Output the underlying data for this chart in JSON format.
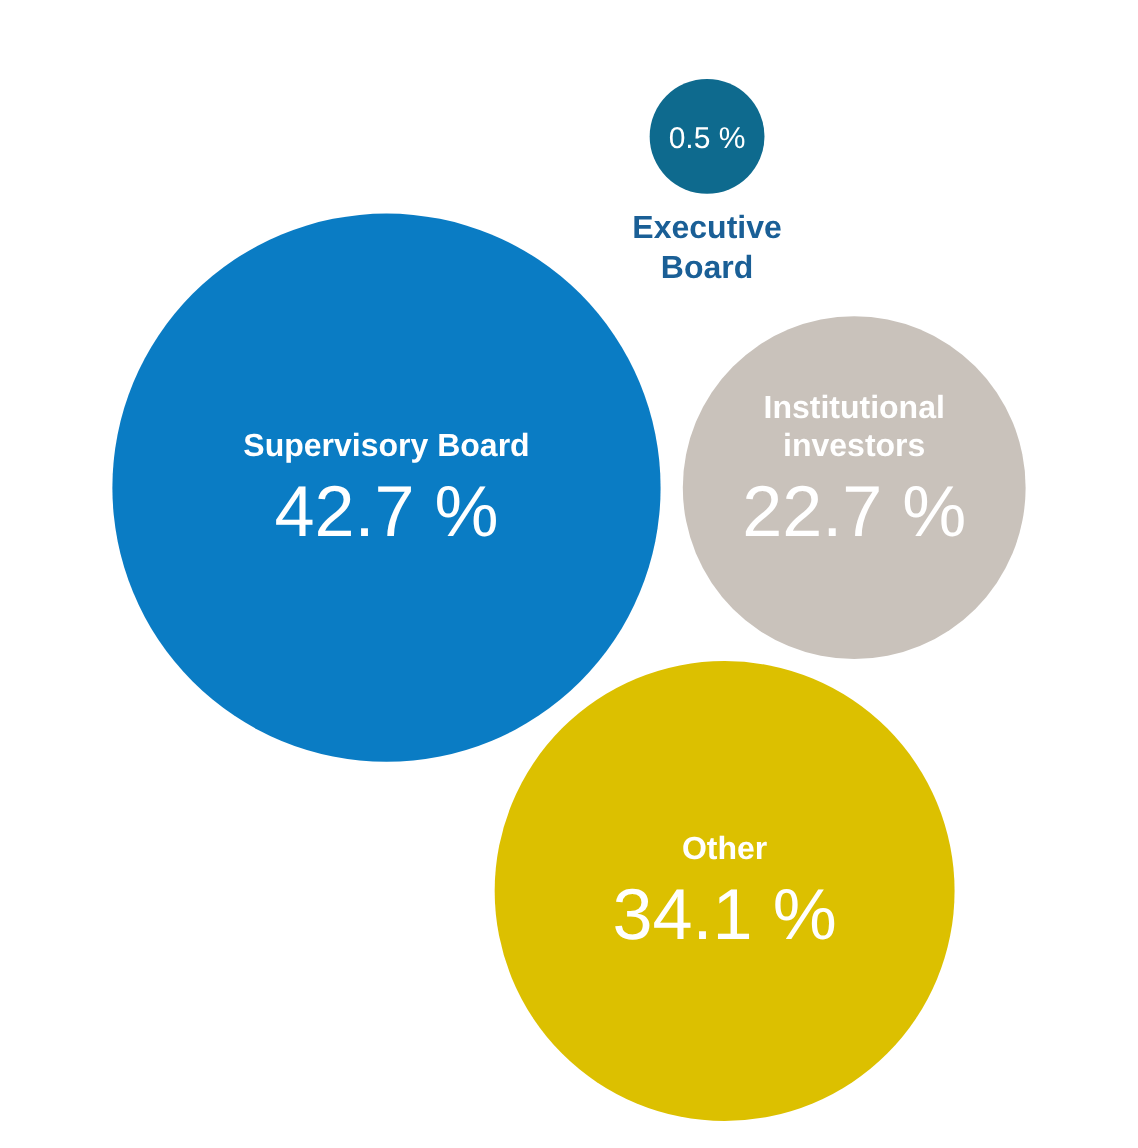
{
  "chart_data": {
    "type": "other",
    "categories": [
      "Supervisory Board",
      "Institutional investors",
      "Other",
      "Executive Board"
    ],
    "values": [
      42.7,
      22.7,
      34.1,
      0.5
    ],
    "value_labels": [
      "42.7 %",
      "22.7 %",
      "34.1 %",
      "0.5 %"
    ],
    "colors": [
      "#0a7cc4",
      "#c9c2bb",
      "#dcc000",
      "#0e6a8e"
    ]
  }
}
